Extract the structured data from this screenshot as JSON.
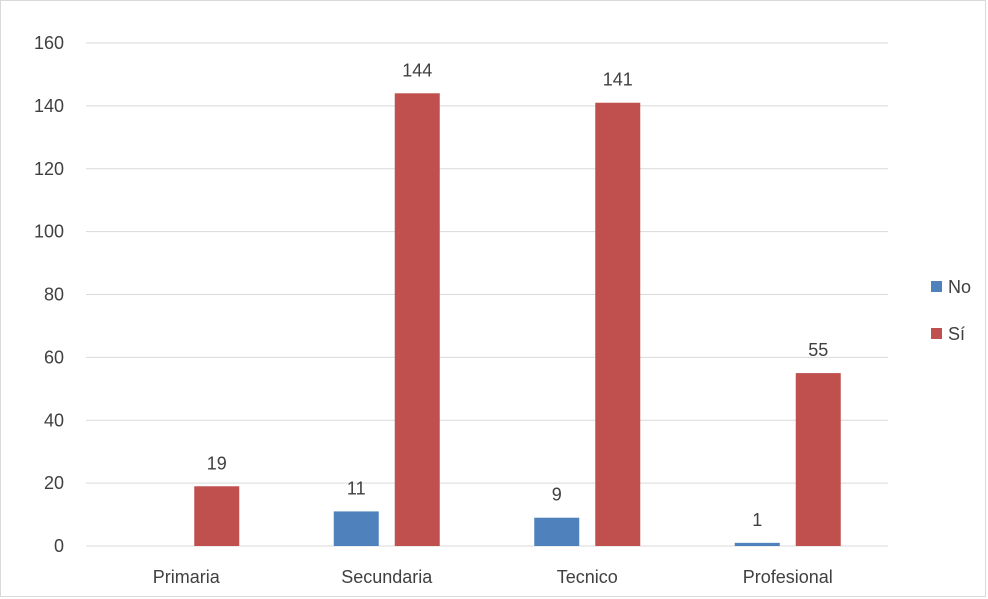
{
  "chart_data": {
    "type": "bar",
    "categories": [
      "Primaria",
      "Secundaria",
      "Tecnico",
      "Profesional"
    ],
    "series": [
      {
        "name": "No",
        "values": [
          0,
          11,
          9,
          1
        ],
        "labels": [
          "",
          "11",
          "9",
          "1"
        ],
        "color": "#4f81bd"
      },
      {
        "name": "Sí",
        "values": [
          19,
          144,
          141,
          55
        ],
        "labels": [
          "19",
          "144",
          "141",
          "55"
        ],
        "color": "#c0504d"
      }
    ],
    "title": "",
    "xlabel": "",
    "ylabel": "",
    "ylim": [
      0,
      160
    ],
    "yticks": [
      "0",
      "20",
      "40",
      "60",
      "80",
      "100",
      "120",
      "140",
      "160"
    ],
    "grid": true,
    "legend_position": "right"
  }
}
